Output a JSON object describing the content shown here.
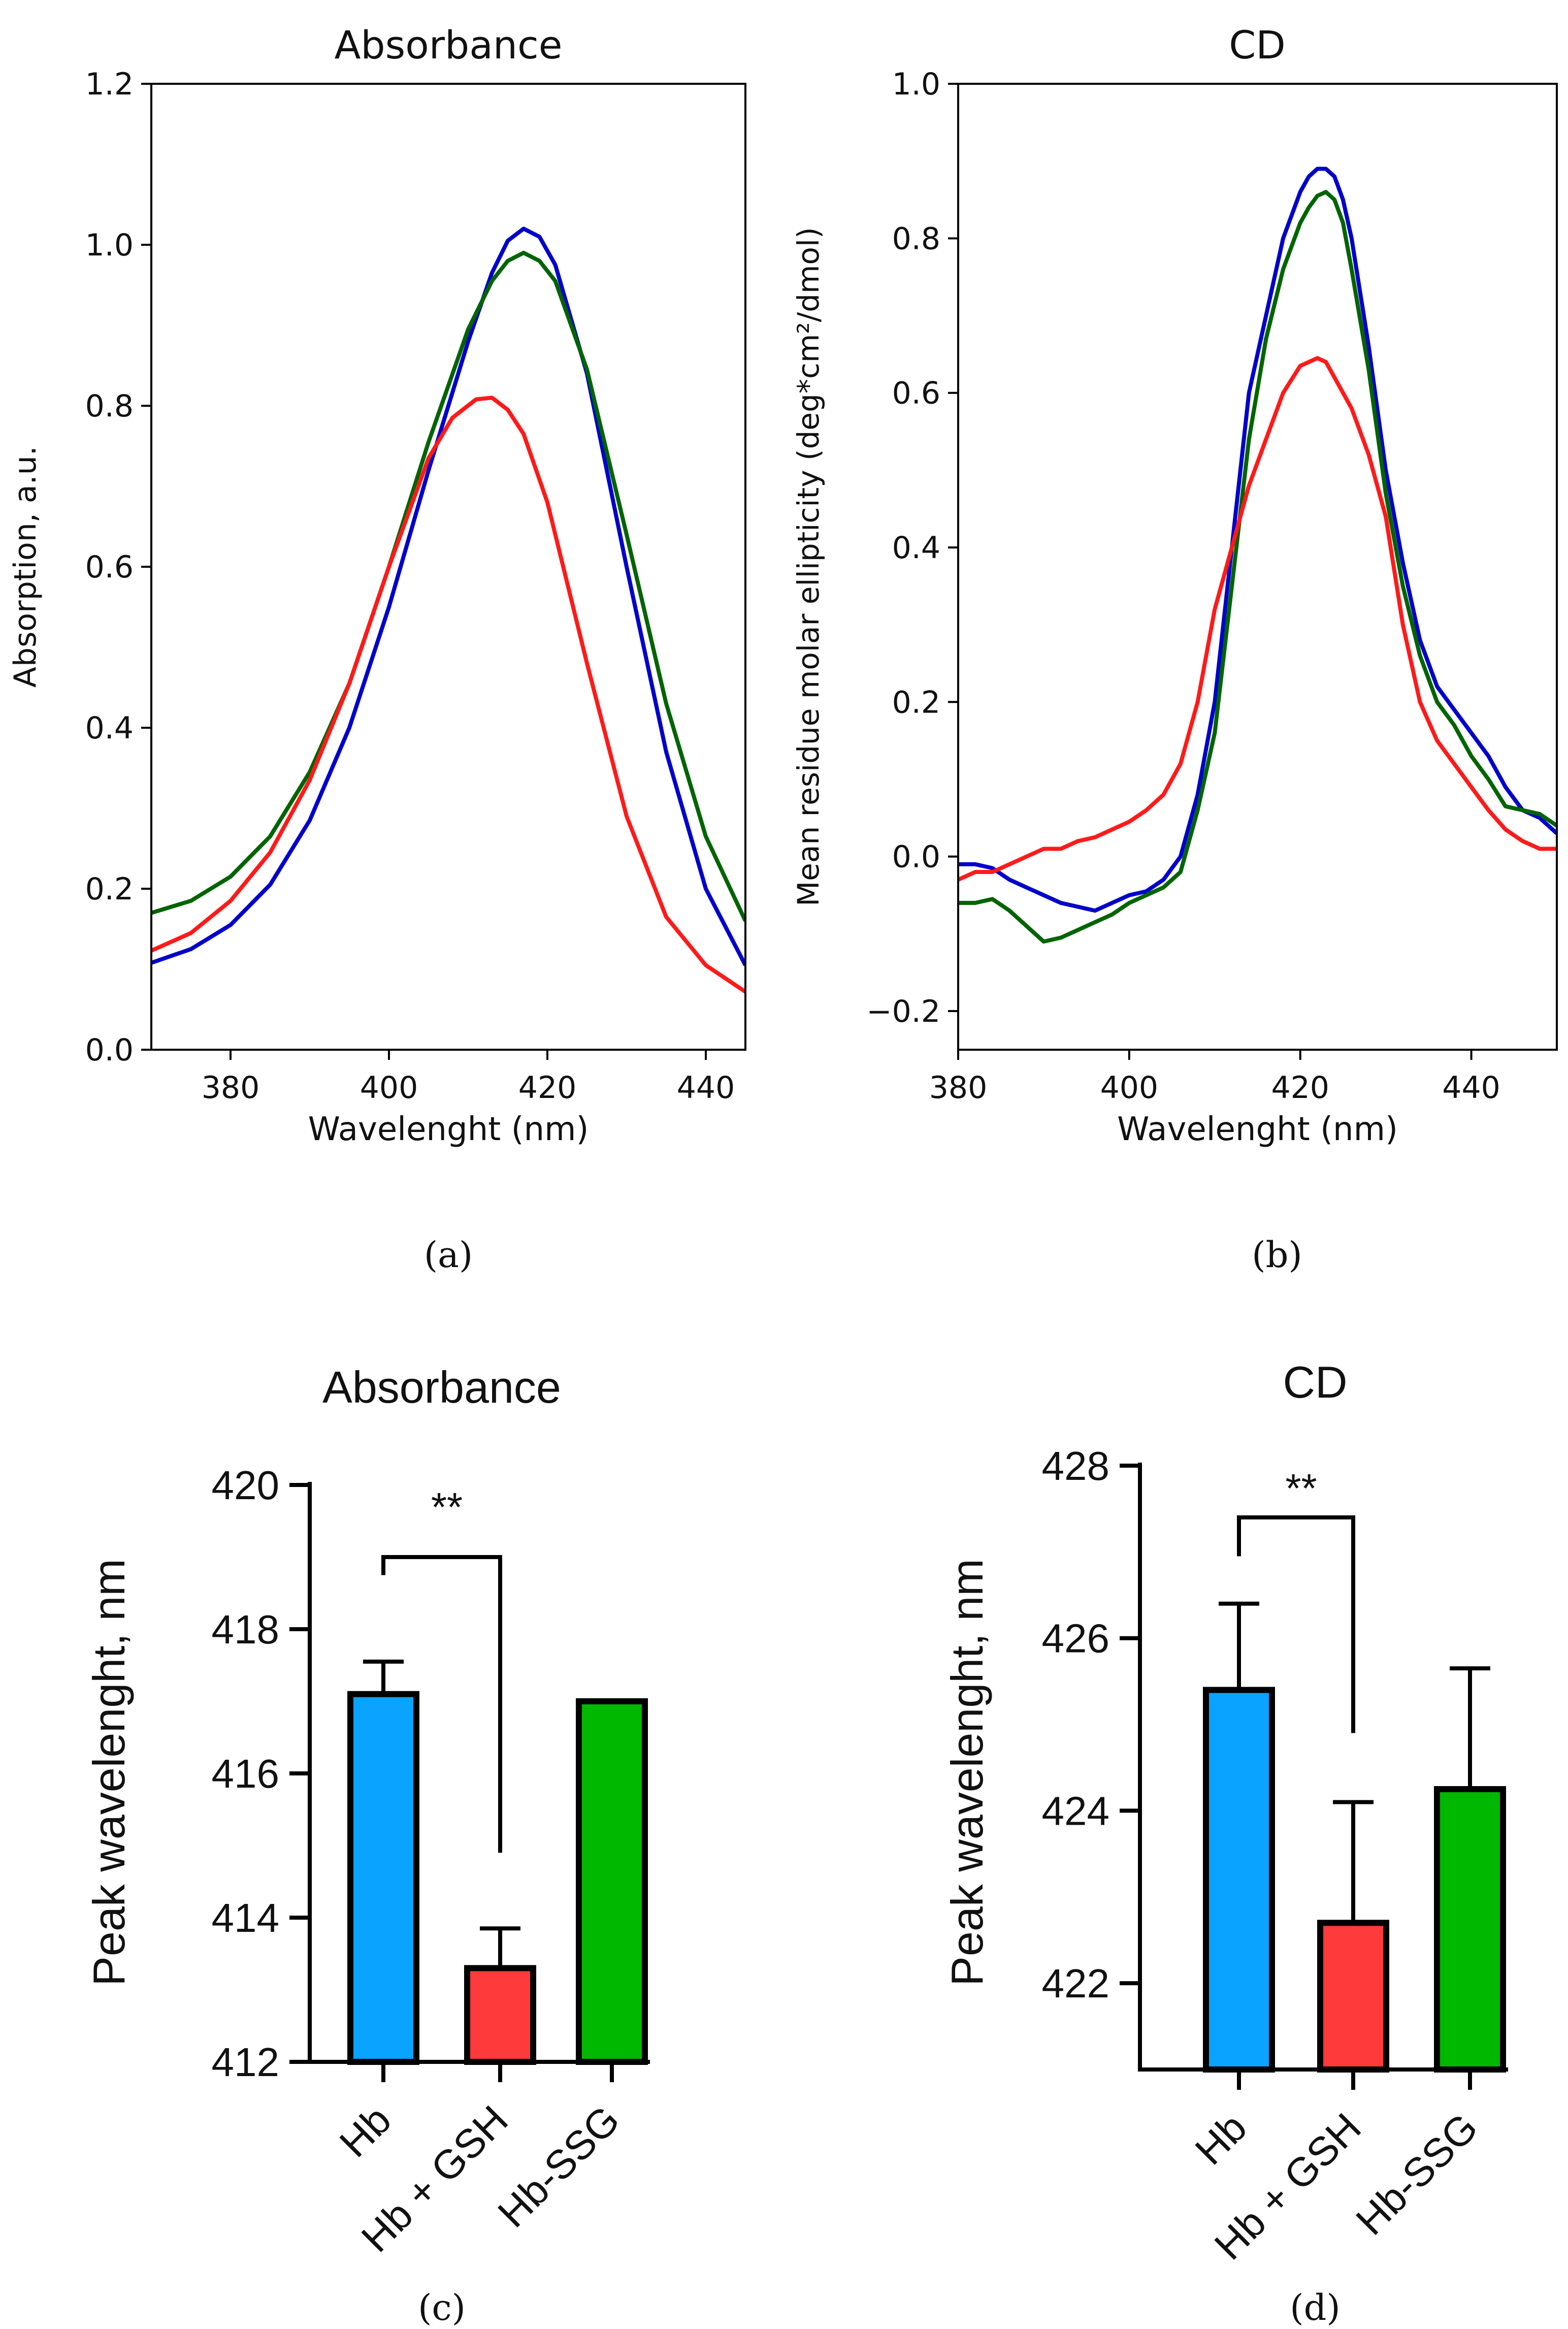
{
  "colors": {
    "blue": "#0000cc",
    "green": "#006400",
    "red": "#ff1a1a",
    "bar_blue": "#0aa3ff",
    "bar_red": "#ff3a3a",
    "bar_green": "#00b800"
  },
  "chart_data": [
    {
      "type": "line",
      "panel": "a",
      "title": "Absorbance",
      "xlabel": "Wavelenght (nm)",
      "ylabel": "Absorption, a.u.",
      "caption": "(a)",
      "xlim": [
        370,
        445
      ],
      "ylim": [
        0,
        1.2
      ],
      "xticks": [
        "380",
        "400",
        "420",
        "440"
      ],
      "xtick_values": [
        380,
        400,
        420,
        440
      ],
      "yticks": [
        "0.0",
        "0.2",
        "0.4",
        "0.6",
        "0.8",
        "1.0",
        "1.2"
      ],
      "ytick_values": [
        0,
        0.2,
        0.4,
        0.6,
        0.8,
        1.0,
        1.2
      ],
      "series": [
        {
          "name": "blue",
          "color": "#0000cc",
          "x": [
            370,
            375,
            380,
            385,
            390,
            395,
            400,
            405,
            410,
            413,
            415,
            417,
            419,
            421,
            425,
            430,
            435,
            440,
            445
          ],
          "y": [
            0.108,
            0.125,
            0.155,
            0.205,
            0.285,
            0.4,
            0.55,
            0.72,
            0.88,
            0.965,
            1.005,
            1.02,
            1.01,
            0.975,
            0.84,
            0.6,
            0.37,
            0.2,
            0.105
          ]
        },
        {
          "name": "green",
          "color": "#006400",
          "x": [
            370,
            375,
            380,
            385,
            390,
            395,
            400,
            405,
            410,
            413,
            415,
            417,
            419,
            421,
            425,
            430,
            435,
            440,
            445
          ],
          "y": [
            0.17,
            0.185,
            0.215,
            0.265,
            0.345,
            0.455,
            0.6,
            0.755,
            0.895,
            0.955,
            0.98,
            0.99,
            0.98,
            0.955,
            0.845,
            0.64,
            0.43,
            0.265,
            0.16
          ]
        },
        {
          "name": "red",
          "color": "#ff1a1a",
          "x": [
            370,
            375,
            380,
            385,
            390,
            395,
            400,
            405,
            408,
            411,
            413,
            415,
            417,
            420,
            425,
            430,
            435,
            440,
            445
          ],
          "y": [
            0.123,
            0.145,
            0.185,
            0.245,
            0.335,
            0.455,
            0.6,
            0.735,
            0.785,
            0.808,
            0.81,
            0.795,
            0.765,
            0.68,
            0.48,
            0.29,
            0.165,
            0.105,
            0.072
          ]
        }
      ]
    },
    {
      "type": "line",
      "panel": "b",
      "title": "CD",
      "xlabel": "Wavelenght (nm)",
      "ylabel": "Mean residue molar ellipticity (deg*cm²/dmol)",
      "caption": "(b)",
      "xlim": [
        380,
        450
      ],
      "ylim": [
        -0.25,
        1.0
      ],
      "xticks": [
        "380",
        "400",
        "420",
        "440"
      ],
      "xtick_values": [
        380,
        400,
        420,
        440
      ],
      "yticks": [
        "−0.2",
        "0.0",
        "0.2",
        "0.4",
        "0.6",
        "0.8",
        "1.0"
      ],
      "ytick_values": [
        -0.2,
        0,
        0.2,
        0.4,
        0.6,
        0.8,
        1.0
      ],
      "series": [
        {
          "name": "blue",
          "color": "#0000cc",
          "x": [
            380,
            382,
            384,
            386,
            388,
            390,
            392,
            394,
            396,
            398,
            400,
            402,
            404,
            406,
            408,
            410,
            412,
            414,
            416,
            418,
            420,
            421,
            422,
            423,
            424,
            425,
            426,
            428,
            430,
            432,
            434,
            436,
            438,
            440,
            442,
            444,
            446,
            448,
            450
          ],
          "y": [
            -0.01,
            -0.01,
            -0.015,
            -0.03,
            -0.04,
            -0.05,
            -0.06,
            -0.065,
            -0.07,
            -0.06,
            -0.05,
            -0.045,
            -0.03,
            0.0,
            0.08,
            0.2,
            0.4,
            0.6,
            0.7,
            0.8,
            0.86,
            0.88,
            0.89,
            0.89,
            0.88,
            0.85,
            0.8,
            0.66,
            0.5,
            0.38,
            0.28,
            0.22,
            0.19,
            0.16,
            0.13,
            0.09,
            0.06,
            0.05,
            0.03
          ]
        },
        {
          "name": "green",
          "color": "#006400",
          "x": [
            380,
            382,
            384,
            386,
            388,
            390,
            392,
            394,
            396,
            398,
            400,
            402,
            404,
            406,
            408,
            410,
            412,
            414,
            416,
            418,
            420,
            421,
            422,
            423,
            424,
            425,
            426,
            428,
            430,
            432,
            434,
            436,
            438,
            440,
            442,
            444,
            446,
            448,
            450
          ],
          "y": [
            -0.06,
            -0.06,
            -0.055,
            -0.07,
            -0.09,
            -0.11,
            -0.105,
            -0.095,
            -0.085,
            -0.075,
            -0.06,
            -0.05,
            -0.04,
            -0.02,
            0.06,
            0.16,
            0.35,
            0.54,
            0.67,
            0.76,
            0.82,
            0.84,
            0.855,
            0.86,
            0.85,
            0.82,
            0.76,
            0.63,
            0.47,
            0.35,
            0.26,
            0.2,
            0.17,
            0.13,
            0.1,
            0.065,
            0.06,
            0.055,
            0.04
          ]
        },
        {
          "name": "red",
          "color": "#ff1a1a",
          "x": [
            380,
            382,
            384,
            386,
            388,
            390,
            392,
            394,
            396,
            398,
            400,
            402,
            404,
            406,
            408,
            410,
            412,
            414,
            416,
            418,
            420,
            421,
            422,
            423,
            424,
            425,
            426,
            428,
            430,
            432,
            434,
            436,
            438,
            440,
            442,
            444,
            446,
            448,
            450
          ],
          "y": [
            -0.03,
            -0.02,
            -0.02,
            -0.01,
            0.0,
            0.01,
            0.01,
            0.02,
            0.025,
            0.035,
            0.045,
            0.06,
            0.08,
            0.12,
            0.2,
            0.32,
            0.4,
            0.48,
            0.54,
            0.6,
            0.635,
            0.64,
            0.645,
            0.64,
            0.62,
            0.6,
            0.58,
            0.52,
            0.44,
            0.3,
            0.2,
            0.15,
            0.12,
            0.09,
            0.06,
            0.035,
            0.02,
            0.01,
            0.01
          ]
        }
      ]
    },
    {
      "type": "bar",
      "panel": "c",
      "title": "Absorbance",
      "ylabel": "Peak wavelenght, nm",
      "caption": "(c)",
      "ylim": [
        412,
        420
      ],
      "yticks": [
        "412",
        "414",
        "416",
        "418",
        "420"
      ],
      "ytick_values": [
        412,
        414,
        416,
        418,
        420
      ],
      "categories": [
        "Hb",
        "Hb + GSH",
        "Hb-SSG"
      ],
      "values": [
        417.1,
        413.3,
        417.0
      ],
      "errors": [
        0.45,
        0.55,
        0
      ],
      "bar_colors": [
        "#0aa3ff",
        "#ff3a3a",
        "#00b800"
      ],
      "significance": {
        "from": 0,
        "to": 1,
        "label": "**",
        "y_top": 419.0,
        "y_left_end": 418.75,
        "y_right_end": 414.9
      }
    },
    {
      "type": "bar",
      "panel": "d",
      "title": "CD",
      "ylabel": "Peak wavelenght, nm",
      "caption": "(d)",
      "ylim": [
        421,
        428
      ],
      "yticks": [
        "422",
        "424",
        "426",
        "428"
      ],
      "ytick_values": [
        422,
        424,
        426,
        428
      ],
      "categories": [
        "Hb",
        "Hb + GSH",
        "Hb-SSG"
      ],
      "values": [
        425.4,
        422.7,
        424.25
      ],
      "errors": [
        1.0,
        1.4,
        1.4
      ],
      "bar_colors": [
        "#0aa3ff",
        "#ff3a3a",
        "#00b800"
      ],
      "significance": {
        "from": 0,
        "to": 1,
        "label": "**",
        "y_top": 427.4,
        "y_left_end": 426.95,
        "y_right_end": 424.9
      }
    }
  ]
}
